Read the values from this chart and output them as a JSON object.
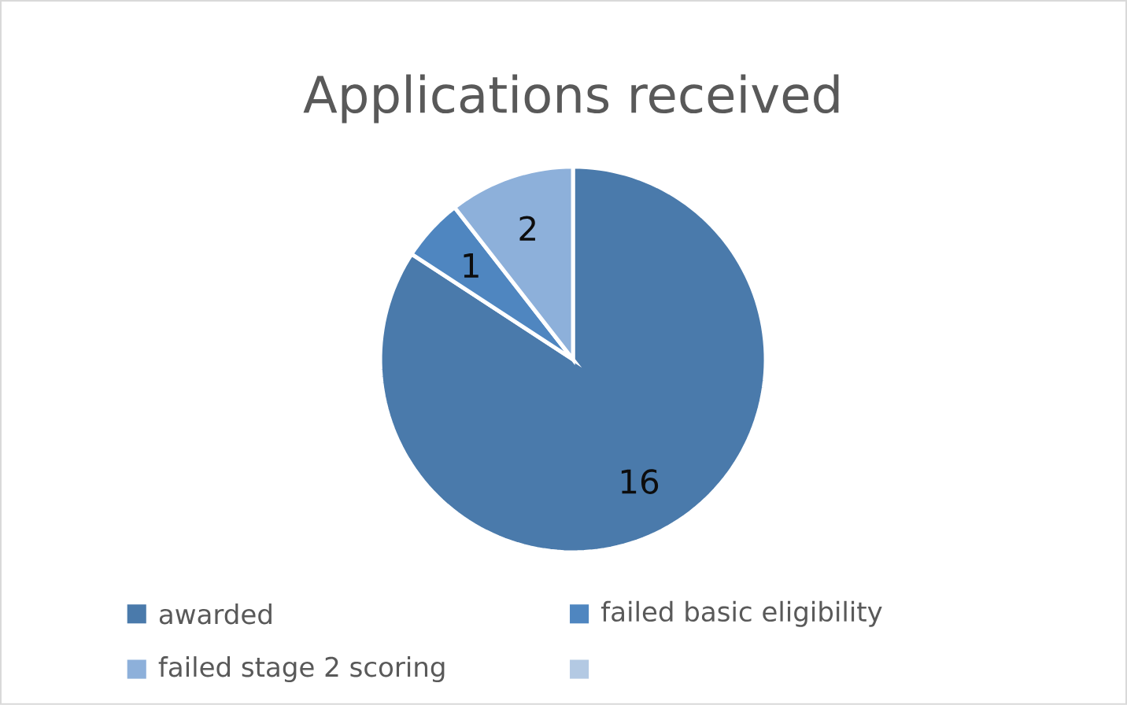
{
  "chart_data": {
    "type": "pie",
    "title": "Applications received",
    "categories": [
      "awarded",
      "failed basic eligibility",
      "failed stage 2 scoring",
      null
    ],
    "values": [
      16,
      1,
      2,
      null
    ],
    "colors": [
      "#4a7aab",
      "#4f86c0",
      "#8db0da",
      "#b3c9e3"
    ],
    "data_labels": true,
    "legend": "bottom"
  }
}
